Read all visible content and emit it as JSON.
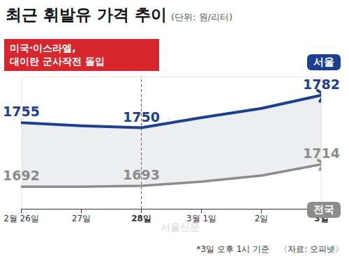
{
  "chart_data": {
    "type": "line",
    "title": "최근 휘발유 가격 추이",
    "subtitle": "(단위: 원/리터)",
    "categories": [
      "2월 26일",
      "27일",
      "28일",
      "3월 1일",
      "2일",
      "3일"
    ],
    "series": [
      {
        "name": "서울",
        "color": "#1c3f94",
        "marker": "arrow",
        "values": [
          1755,
          1752,
          1750,
          1760,
          1769,
          1782
        ],
        "value_labels": [
          "1755",
          null,
          "1750",
          null,
          null,
          "1782"
        ]
      },
      {
        "name": "전국",
        "color": "#8c8c8c",
        "marker": "arrow",
        "values": [
          1692,
          1692,
          1693,
          1697,
          1703,
          1714
        ],
        "value_labels": [
          "1692",
          null,
          "1693",
          null,
          null,
          "1714"
        ]
      }
    ],
    "ylim": [
      1670,
      1800
    ],
    "yticks": [],
    "tick_labels": "x",
    "grid": false,
    "data_labels": true,
    "annotation": {
      "text": [
        "미국·이스라엘,",
        "대이란 군사작전 돌입"
      ],
      "x": "28일",
      "color": "#d7262e"
    },
    "footnote": "*3일 오후 1시 기준",
    "source": "〈자료: 오피넷〉",
    "watermark": "서울신문"
  }
}
